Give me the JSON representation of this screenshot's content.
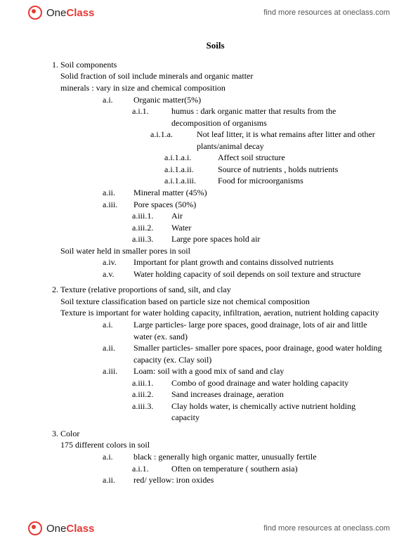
{
  "brand": {
    "one": "One",
    "class": "Class"
  },
  "header_link": "find more resources at oneclass.com",
  "footer_link": "find more resources at oneclass.com",
  "title": "Soils",
  "s1": {
    "heading": "Soil components",
    "p1": "Solid fraction of soil include minerals and organic matter",
    "p2": "minerals : vary in size and chemical composition",
    "ai": "Organic matter(5%)",
    "ai1": "humus : dark organic matter that results from the decomposition of organisms",
    "ai1a": "Not leaf litter, it is what remains after litter and other plants/animal decay",
    "ai1ai": "Affect soil structure",
    "ai1aii": "Source of nutrients , holds nutrients",
    "ai1aiii": "Food for microorganisms",
    "aii": "Mineral matter (45%)",
    "aiii": "Pore spaces (50%)",
    "aiii1": "Air",
    "aiii2": "Water",
    "aiii3": "Large pore spaces hold air",
    "p3": "Soil water held in smaller pores  in soil",
    "aiv": "Important for plant growth and contains dissolved nutrients",
    "av": "Water holding capacity of soil depends on soil texture and structure"
  },
  "s2": {
    "heading": "Texture (relative proportions of sand, silt, and clay",
    "p1": "Soil texture classification based on particle size not chemical composition",
    "p2": "Texture is important for water holding capacity, infiltration, aeration, nutrient holding capacity",
    "ai": "Large particles- large pore spaces, good drainage, lots of air and little water (ex. sand)",
    "aii": "Smaller particles- smaller pore spaces, poor drainage, good water holding capacity  (ex. Clay soil)",
    "aiii": "Loam: soil with a good mix of sand and clay",
    "aiii1": "Combo of good drainage and water holding capacity",
    "aiii2": "Sand increases drainage, aeration",
    "aiii3": "Clay holds water, is chemically active nutrient holding capacity"
  },
  "s3": {
    "heading": "Color",
    "p1": "175 different colors in soil",
    "ai": "black : generally high organic matter, unusually fertile",
    "ai1": "Often on temperature ( southern asia)",
    "aii": "red/ yellow: iron oxides"
  },
  "labels": {
    "ai": "a.i.",
    "aii": "a.ii.",
    "aiii": "a.iii.",
    "aiv": "a.iv.",
    "av": "a.v.",
    "ai1": "a.i.1.",
    "ai1a": "a.i.1.a.",
    "ai1ai": "a.i.1.a.i.",
    "ai1aii": "a.i.1.a.ii.",
    "ai1aiii": "a.i.1.a.iii.",
    "aiii1": "a.iii.1.",
    "aiii2": "a.iii.2.",
    "aiii3": "a.iii.3."
  }
}
